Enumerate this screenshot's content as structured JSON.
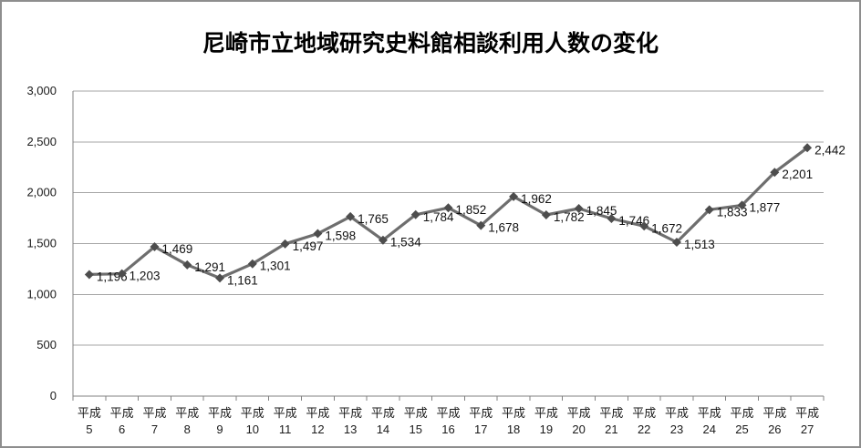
{
  "chart_data": {
    "type": "line",
    "title": "尼崎市立地域研究史料館相談利用人数の変化",
    "categories": [
      "平成5",
      "平成6",
      "平成7",
      "平成8",
      "平成9",
      "平成10",
      "平成11",
      "平成12",
      "平成13",
      "平成14",
      "平成15",
      "平成16",
      "平成17",
      "平成18",
      "平成19",
      "平成20",
      "平成21",
      "平成22",
      "平成23",
      "平成24",
      "平成25",
      "平成26",
      "平成27"
    ],
    "category_prefix": "平成",
    "values": [
      1196,
      1203,
      1469,
      1291,
      1161,
      1301,
      1497,
      1598,
      1765,
      1534,
      1784,
      1852,
      1678,
      1962,
      1782,
      1845,
      1746,
      1672,
      1513,
      1833,
      1877,
      2201,
      2442
    ],
    "y_ticks": [
      0,
      500,
      1000,
      1500,
      2000,
      2500,
      3000
    ],
    "ylim": [
      0,
      3000
    ],
    "xlabel": "",
    "ylabel": "",
    "grid": "horizontal",
    "legend": "none",
    "data_labels": true,
    "number_format": "#,##0",
    "marker": "diamond"
  },
  "colors": {
    "series_line": "#6e6e6e",
    "marker_fill": "#4d4d4d",
    "gridline": "#a6a6a6",
    "axis_line": "#808080",
    "tick_label": "#1a1a1a",
    "data_label": "#111111",
    "title": "#000000",
    "frame_border": "#8e8e8e",
    "background": "#ffffff"
  }
}
